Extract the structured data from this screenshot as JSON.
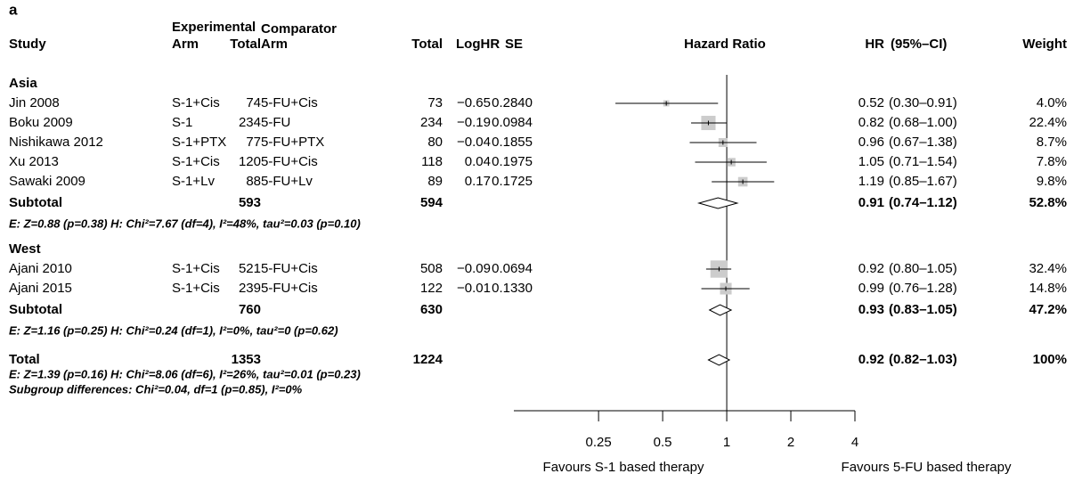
{
  "chart_data": {
    "type": "forest",
    "panel_label": "a",
    "headers": {
      "study": "Study",
      "experimental": "Experimental",
      "exp_arm": "Arm",
      "exp_total": "Total",
      "comparator": "Comparator",
      "comp_arm": "Arm",
      "comp_total": "Total",
      "loghr": "LogHR",
      "se": "SE",
      "hazard_ratio": "Hazard Ratio",
      "hr": "HR",
      "ci": "(95%–CI)",
      "weight": "Weight"
    },
    "log_scale": true,
    "xlim": [
      0.1,
      4
    ],
    "xticks": [
      0.25,
      0.5,
      1,
      2,
      4
    ],
    "reference_line": 1,
    "square_color": "#cccccc",
    "x_labels": [
      "Favours S-1 based therapy",
      "Favours 5-FU based therapy"
    ],
    "groups": [
      {
        "name": "Asia",
        "studies": [
          {
            "study": "Jin 2008",
            "exp_arm": "S-1+Cis",
            "exp_total": 74,
            "comp_arm": "5-FU+Cis",
            "comp_total": 73,
            "loghr": -0.65,
            "loghr_label": "−0.65",
            "se": 0.284,
            "se_label": "0.2840",
            "hr": 0.52,
            "ci": [
              0.3,
              0.91
            ],
            "ci_label": "(0.30–0.91)",
            "weight": 4.0,
            "weight_label": "4.0%"
          },
          {
            "study": "Boku 2009",
            "exp_arm": "S-1",
            "exp_total": 234,
            "comp_arm": "5-FU",
            "comp_total": 234,
            "loghr": -0.19,
            "loghr_label": "−0.19",
            "se": 0.0984,
            "se_label": "0.0984",
            "hr": 0.82,
            "ci": [
              0.68,
              1.0
            ],
            "ci_label": "(0.68–1.00)",
            "weight": 22.4,
            "weight_label": "22.4%"
          },
          {
            "study": "Nishikawa 2012",
            "exp_arm": "S-1+PTX",
            "exp_total": 77,
            "comp_arm": "5-FU+PTX",
            "comp_total": 80,
            "loghr": -0.04,
            "loghr_label": "−0.04",
            "se": 0.1855,
            "se_label": "0.1855",
            "hr": 0.96,
            "ci": [
              0.67,
              1.38
            ],
            "ci_label": "(0.67–1.38)",
            "weight": 8.7,
            "weight_label": "8.7%"
          },
          {
            "study": "Xu 2013",
            "exp_arm": "S-1+Cis",
            "exp_total": 120,
            "comp_arm": "5-FU+Cis",
            "comp_total": 118,
            "loghr": 0.04,
            "loghr_label": "0.04",
            "se": 0.1975,
            "se_label": "0.1975",
            "hr": 1.05,
            "ci": [
              0.71,
              1.54
            ],
            "ci_label": "(0.71–1.54)",
            "weight": 7.8,
            "weight_label": "7.8%"
          },
          {
            "study": "Sawaki 2009",
            "exp_arm": "S-1+Lv",
            "exp_total": 88,
            "comp_arm": "5-FU+Lv",
            "comp_total": 89,
            "loghr": 0.17,
            "loghr_label": "0.17",
            "se": 0.1725,
            "se_label": "0.1725",
            "hr": 1.19,
            "ci": [
              0.85,
              1.67
            ],
            "ci_label": "(0.85–1.67)",
            "weight": 9.8,
            "weight_label": "9.8%"
          }
        ],
        "subtotal": {
          "label": "Subtotal",
          "exp_total": 593,
          "comp_total": 594,
          "hr": 0.91,
          "ci": [
            0.74,
            1.12
          ],
          "ci_label": "(0.74–1.12)",
          "weight": 52.8,
          "weight_label": "52.8%"
        },
        "heterogeneity": "E: Z=0.88 (p=0.38) H: Chi²=7.67 (df=4), I²=48%, tau²=0.03 (p=0.10)"
      },
      {
        "name": "West",
        "studies": [
          {
            "study": "Ajani 2010",
            "exp_arm": "S-1+Cis",
            "exp_total": 521,
            "comp_arm": "5-FU+Cis",
            "comp_total": 508,
            "loghr": -0.09,
            "loghr_label": "−0.09",
            "se": 0.0694,
            "se_label": "0.0694",
            "hr": 0.92,
            "ci": [
              0.8,
              1.05
            ],
            "ci_label": "(0.80–1.05)",
            "weight": 32.4,
            "weight_label": "32.4%"
          },
          {
            "study": "Ajani 2015",
            "exp_arm": "S-1+Cis",
            "exp_total": 239,
            "comp_arm": "5-FU+Cis",
            "comp_total": 122,
            "loghr": -0.01,
            "loghr_label": "−0.01",
            "se": 0.133,
            "se_label": "0.1330",
            "hr": 0.99,
            "ci": [
              0.76,
              1.28
            ],
            "ci_label": "(0.76–1.28)",
            "weight": 14.8,
            "weight_label": "14.8%"
          }
        ],
        "subtotal": {
          "label": "Subtotal",
          "exp_total": 760,
          "comp_total": 630,
          "hr": 0.93,
          "ci": [
            0.83,
            1.05
          ],
          "ci_label": "(0.83–1.05)",
          "weight": 47.2,
          "weight_label": "47.2%"
        },
        "heterogeneity": "E: Z=1.16 (p=0.25) H: Chi²=0.24 (df=1), I²=0%, tau²=0 (p=0.62)"
      }
    ],
    "total": {
      "label": "Total",
      "exp_total": 1353,
      "comp_total": 1224,
      "hr": 0.92,
      "ci": [
        0.82,
        1.03
      ],
      "ci_label": "(0.82–1.03)",
      "weight": 100,
      "weight_label": "100%"
    },
    "total_heterogeneity": "E: Z=1.39 (p=0.16) H: Chi²=8.06 (df=6), I²=26%, tau²=0.01 (p=0.23)",
    "subgroup_differences": "Subgroup differences: Chi²=0.04, df=1 (p=0.85), I²=0%"
  }
}
